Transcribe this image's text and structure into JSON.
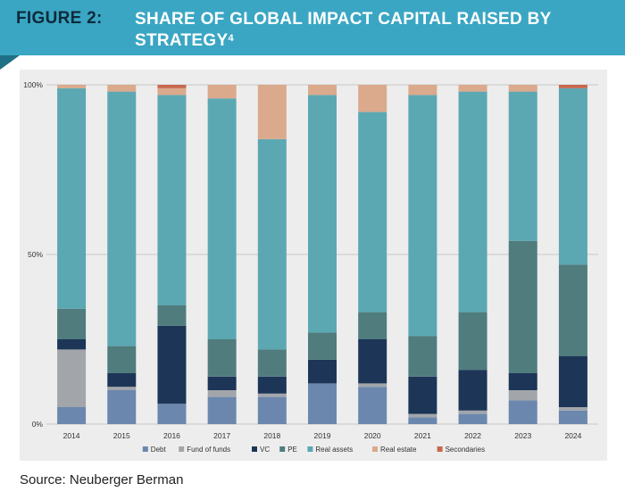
{
  "header": {
    "figure_label": "FIGURE 2:",
    "title": "SHARE OF GLOBAL IMPACT CAPITAL RAISED BY STRATEGY",
    "footnote": "4"
  },
  "source": "Source: Neuberger Berman",
  "colors": {
    "header_bg": "#3aa6c3",
    "header_fold": "#1f6f86",
    "panel_bg": "#ededed"
  },
  "chart_data": {
    "type": "bar",
    "stacked": true,
    "title": "SHARE OF GLOBAL IMPACT CAPITAL RAISED BY STRATEGY",
    "xlabel": "",
    "ylabel": "",
    "ylim": [
      0,
      100
    ],
    "y_ticks": [
      0,
      50,
      100
    ],
    "y_tick_labels": [
      "0%",
      "50%",
      "100%"
    ],
    "grid": "horizontal",
    "legend_position": "bottom",
    "categories": [
      "2014",
      "2015",
      "2016",
      "2017",
      "2018",
      "2019",
      "2020",
      "2021",
      "2022",
      "2023",
      "2024"
    ],
    "series": [
      {
        "name": "Debt",
        "color": "#6b87ad",
        "values": [
          5,
          10,
          6,
          8,
          8,
          12,
          11,
          2,
          3,
          7,
          4
        ]
      },
      {
        "name": "Fund of funds",
        "color": "#a2a6aa",
        "values": [
          17,
          1,
          0,
          2,
          1,
          0,
          1,
          1,
          1,
          3,
          1
        ]
      },
      {
        "name": "VC",
        "color": "#1d3557",
        "values": [
          3,
          4,
          23,
          4,
          5,
          7,
          13,
          11,
          12,
          5,
          15
        ]
      },
      {
        "name": "PE",
        "color": "#507c7e",
        "values": [
          9,
          8,
          6,
          11,
          8,
          8,
          8,
          12,
          17,
          39,
          27
        ]
      },
      {
        "name": "Real assets",
        "color": "#5ba8b3",
        "values": [
          65,
          75,
          62,
          71,
          62,
          70,
          59,
          71,
          65,
          44,
          52
        ]
      },
      {
        "name": "Real estate",
        "color": "#dba98c",
        "values": [
          1,
          2,
          2,
          4,
          16,
          3,
          8,
          3,
          2,
          2,
          0
        ]
      },
      {
        "name": "Secondaries",
        "color": "#c8674d",
        "values": [
          0,
          0,
          1,
          0,
          0,
          0,
          0,
          0,
          0,
          0,
          1
        ]
      }
    ]
  }
}
